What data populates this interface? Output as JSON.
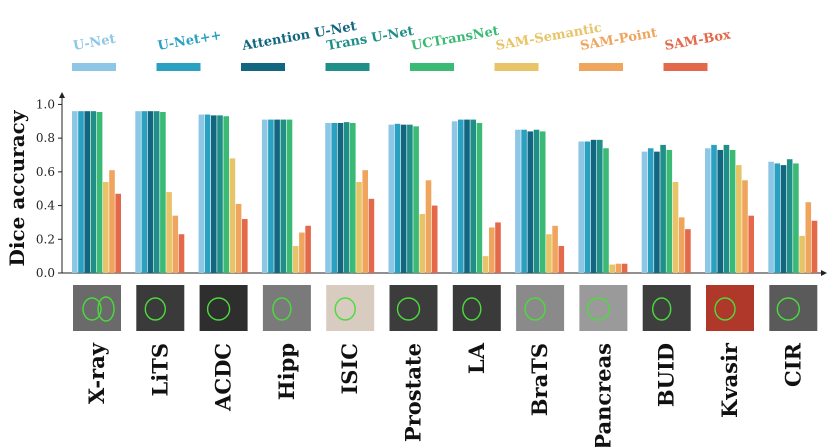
{
  "chart_data": {
    "type": "bar",
    "ylabel": "Dice accuracy",
    "xlabel": "",
    "ylim": [
      0,
      1.05
    ],
    "yticks": [
      "0.0",
      "0.2",
      "0.4",
      "0.6",
      "0.8",
      "1.0"
    ],
    "legend_placement": "top",
    "grid": false,
    "categories": [
      "X-ray",
      "LiTS",
      "ACDC",
      "Hipp",
      "ISIC",
      "Prostate",
      "LA",
      "BraTS",
      "Pancreas",
      "BUID",
      "Kvasir",
      "CIR"
    ],
    "series": [
      {
        "name": "U-Net",
        "color": "#8ec7e6",
        "values": [
          0.96,
          0.96,
          0.94,
          0.91,
          0.89,
          0.88,
          0.9,
          0.85,
          0.78,
          0.72,
          0.74,
          0.66
        ]
      },
      {
        "name": "U-Net++",
        "color": "#2aa1c0",
        "values": [
          0.96,
          0.96,
          0.94,
          0.91,
          0.89,
          0.885,
          0.91,
          0.85,
          0.78,
          0.74,
          0.76,
          0.65
        ]
      },
      {
        "name": "Attention U-Net",
        "color": "#13667f",
        "values": [
          0.96,
          0.96,
          0.935,
          0.91,
          0.89,
          0.88,
          0.91,
          0.84,
          0.79,
          0.72,
          0.73,
          0.64
        ]
      },
      {
        "name": "Trans U-Net",
        "color": "#1f8f88",
        "values": [
          0.96,
          0.96,
          0.935,
          0.91,
          0.895,
          0.88,
          0.91,
          0.85,
          0.79,
          0.76,
          0.76,
          0.675
        ]
      },
      {
        "name": "UCTransNet",
        "color": "#3aba74",
        "values": [
          0.955,
          0.955,
          0.93,
          0.91,
          0.89,
          0.87,
          0.89,
          0.84,
          0.74,
          0.73,
          0.73,
          0.65
        ]
      },
      {
        "name": "SAM-Semantic",
        "color": "#e8c468",
        "values": [
          0.54,
          0.48,
          0.68,
          0.16,
          0.54,
          0.35,
          0.1,
          0.23,
          0.05,
          0.54,
          0.64,
          0.22
        ]
      },
      {
        "name": "SAM-Point",
        "color": "#f0a55e",
        "values": [
          0.61,
          0.34,
          0.41,
          0.24,
          0.61,
          0.55,
          0.27,
          0.28,
          0.055,
          0.33,
          0.55,
          0.42
        ]
      },
      {
        "name": "SAM-Box",
        "color": "#e4684a",
        "values": [
          0.47,
          0.23,
          0.32,
          0.28,
          0.44,
          0.4,
          0.3,
          0.16,
          0.055,
          0.26,
          0.34,
          0.31
        ]
      }
    ]
  }
}
